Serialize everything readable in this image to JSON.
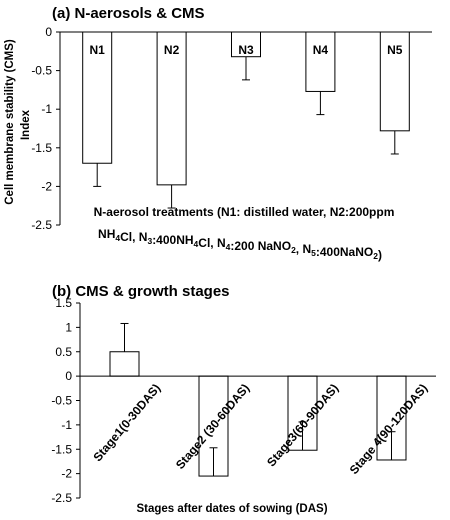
{
  "chart_data": [
    {
      "type": "bar",
      "title": "(a) N-aerosols & CMS",
      "ylabel_line1": "Cell membrane stability (CMS)",
      "ylabel_line2": "Index",
      "xlabel_lines": [
        "N-aerosol treatments (N1: distilled water, N2:200ppm",
        "NH4Cl, N3:400NH4Cl, N4:200 NaNO2, N5:400NaNO2)"
      ],
      "categories": [
        "N1",
        "N2",
        "N3",
        "N4",
        "N5"
      ],
      "values": [
        -1.7,
        -1.98,
        -0.32,
        -0.77,
        -1.28
      ],
      "error": [
        0.3,
        0.3,
        0.3,
        0.3,
        0.3
      ],
      "ylim": [
        -2.5,
        0
      ],
      "yticks": [
        "0",
        "-0.5",
        "-1",
        "-1.5",
        "-2",
        "-2.5"
      ],
      "grid": false
    },
    {
      "type": "bar",
      "title": "(b) CMS & growth stages",
      "xlabel": "Stages after dates of sowing (DAS)",
      "categories": [
        "Stage1(0-30DAS)",
        "Stage2 (30-60DAS)",
        "Stage3(60-90DAS)",
        "Stage 4(90-120DAS)"
      ],
      "values": [
        0.5,
        -2.05,
        -1.52,
        -1.72
      ],
      "error": [
        0.58,
        0.58,
        0.58,
        0.58
      ],
      "ylim": [
        -2.5,
        1.5
      ],
      "yticks": [
        "1.5",
        "1",
        "0.5",
        "0",
        "-0.5",
        "-1",
        "-1.5",
        "-2",
        "-2.5"
      ],
      "grid": false
    }
  ]
}
